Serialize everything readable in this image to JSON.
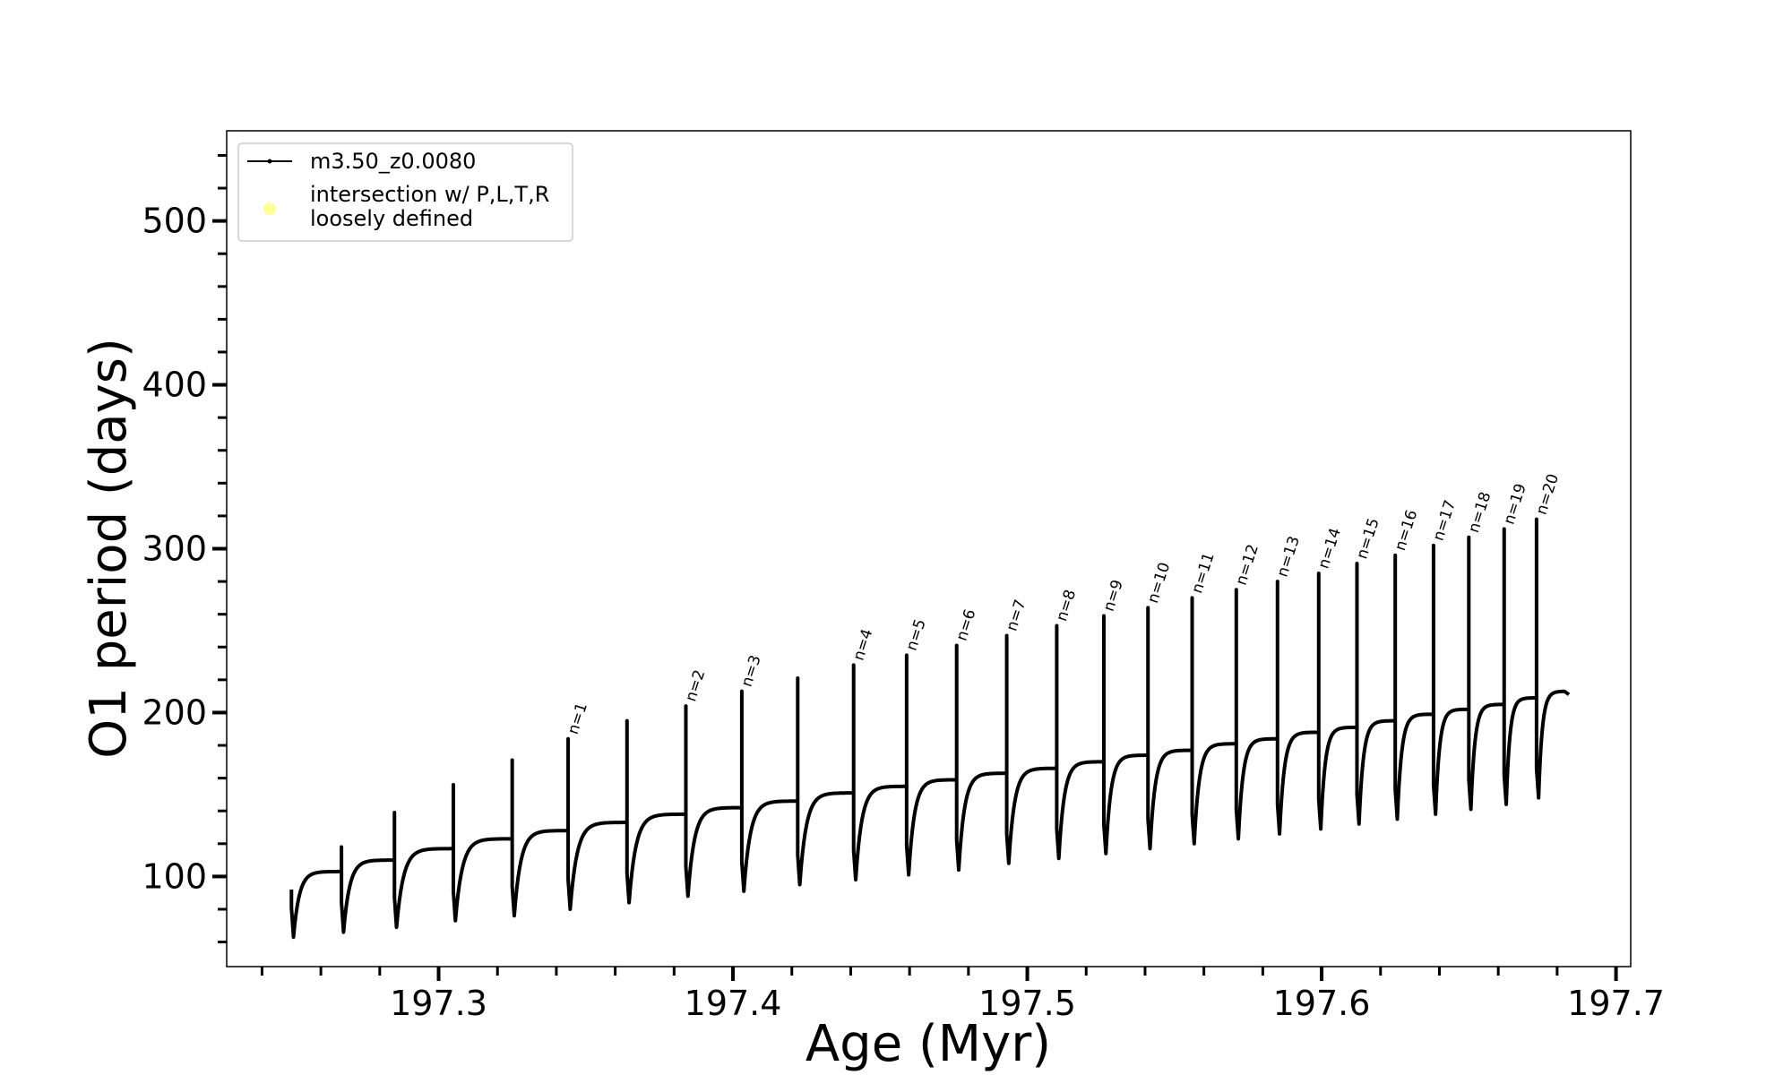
{
  "chart_data": {
    "type": "line",
    "xlabel": "Age (Myr)",
    "ylabel": "O1 period (days)",
    "xlim": [
      197.228,
      197.705
    ],
    "ylim": [
      45,
      555
    ],
    "xticks": [
      197.3,
      197.4,
      197.5,
      197.6,
      197.7
    ],
    "xtick_labels": [
      "197.3",
      "197.4",
      "197.5",
      "197.6",
      "197.7"
    ],
    "yticks": [
      100,
      200,
      300,
      400,
      500
    ],
    "ytick_labels": [
      "100",
      "200",
      "300",
      "400",
      "500"
    ],
    "grid": false,
    "legend": {
      "placement": "top-left",
      "entries": [
        {
          "label": "m3.50_z0.0080",
          "marker": "line-with-dots",
          "color": "#000000"
        },
        {
          "label": [
            "intersection w/ P,L,T,R",
            "loosely defined"
          ],
          "marker": "circle",
          "color": "#ffff99"
        }
      ]
    },
    "series": [
      {
        "name": "m3.50_z0.0080",
        "color": "#000000",
        "start": {
          "age": 197.25,
          "period": 92
        },
        "end": {
          "age": 197.684,
          "period": 211
        },
        "pulses": [
          {
            "age": 197.25,
            "peak": 92,
            "low": 63,
            "plateau": 103
          },
          {
            "age": 197.267,
            "peak": 118,
            "low": 66,
            "plateau": 110
          },
          {
            "age": 197.285,
            "peak": 139,
            "low": 69,
            "plateau": 117
          },
          {
            "age": 197.305,
            "peak": 156,
            "low": 73,
            "plateau": 123
          },
          {
            "age": 197.325,
            "peak": 171,
            "low": 76,
            "plateau": 128
          },
          {
            "age": 197.344,
            "peak": 184,
            "low": 80,
            "plateau": 133,
            "label": "n=1"
          },
          {
            "age": 197.364,
            "peak": 195,
            "low": 84,
            "plateau": 138
          },
          {
            "age": 197.384,
            "peak": 204,
            "low": 88,
            "plateau": 142,
            "label": "n=2"
          },
          {
            "age": 197.403,
            "peak": 213,
            "low": 91,
            "plateau": 146,
            "label": "n=3"
          },
          {
            "age": 197.422,
            "peak": 221,
            "low": 95,
            "plateau": 151
          },
          {
            "age": 197.441,
            "peak": 229,
            "low": 98,
            "plateau": 155,
            "label": "n=4"
          },
          {
            "age": 197.459,
            "peak": 235,
            "low": 101,
            "plateau": 159,
            "label": "n=5"
          },
          {
            "age": 197.476,
            "peak": 241,
            "low": 104,
            "plateau": 163,
            "label": "n=6"
          },
          {
            "age": 197.493,
            "peak": 247,
            "low": 108,
            "plateau": 166,
            "label": "n=7"
          },
          {
            "age": 197.51,
            "peak": 253,
            "low": 111,
            "plateau": 170,
            "label": "n=8"
          },
          {
            "age": 197.526,
            "peak": 259,
            "low": 114,
            "plateau": 174,
            "label": "n=9"
          },
          {
            "age": 197.541,
            "peak": 264,
            "low": 117,
            "plateau": 177,
            "label": "n=10"
          },
          {
            "age": 197.556,
            "peak": 270,
            "low": 120,
            "plateau": 181,
            "label": "n=11"
          },
          {
            "age": 197.571,
            "peak": 275,
            "low": 123,
            "plateau": 184,
            "label": "n=12"
          },
          {
            "age": 197.585,
            "peak": 280,
            "low": 126,
            "plateau": 188,
            "label": "n=13"
          },
          {
            "age": 197.599,
            "peak": 285,
            "low": 129,
            "plateau": 191,
            "label": "n=14"
          },
          {
            "age": 197.612,
            "peak": 291,
            "low": 132,
            "plateau": 195,
            "label": "n=15"
          },
          {
            "age": 197.625,
            "peak": 296,
            "low": 135,
            "plateau": 199,
            "label": "n=16"
          },
          {
            "age": 197.638,
            "peak": 302,
            "low": 138,
            "plateau": 202,
            "label": "n=17"
          },
          {
            "age": 197.65,
            "peak": 307,
            "low": 141,
            "plateau": 205,
            "label": "n=18"
          },
          {
            "age": 197.662,
            "peak": 312,
            "low": 144,
            "plateau": 209,
            "label": "n=19"
          },
          {
            "age": 197.673,
            "peak": 318,
            "low": 148,
            "plateau": 213,
            "label": "n=20"
          }
        ]
      }
    ]
  }
}
